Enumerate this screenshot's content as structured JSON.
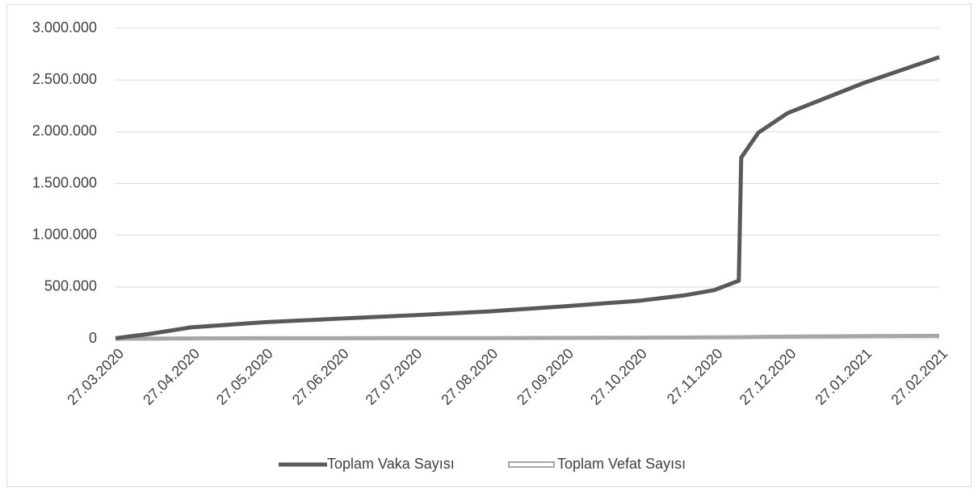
{
  "chart_data": {
    "type": "line",
    "x": [
      "27.03.2020",
      "10.04.2020",
      "27.04.2020",
      "27.05.2020",
      "27.06.2020",
      "27.07.2020",
      "27.08.2020",
      "27.09.2020",
      "27.10.2020",
      "15.11.2020",
      "27.11.2020",
      "07.12.2020",
      "08.12.2020",
      "15.12.2020",
      "27.12.2020",
      "27.01.2021",
      "27.02.2021"
    ],
    "series": [
      {
        "name": "Toplam Vaka Sayısı",
        "color": "#595959",
        "values": [
          5698,
          47029,
          110130,
          159797,
          194511,
          227019,
          263998,
          313811,
          366051,
          420000,
          470000,
          560000,
          1750000,
          1990000,
          2180000,
          2470000,
          2720000
        ]
      },
      {
        "name": "Toplam Vefat Sayısı",
        "color": "#a6a6a6",
        "values": [
          92,
          1006,
          2805,
          4431,
          5046,
          5645,
          6245,
          7970,
          9950,
          11820,
          13014,
          15000,
          15100,
          17000,
          19878,
          25605,
          28138
        ]
      }
    ],
    "xticks": [
      "27.03.2020",
      "27.04.2020",
      "27.05.2020",
      "27.06.2020",
      "27.07.2020",
      "27.08.2020",
      "27.09.2020",
      "27.10.2020",
      "27.11.2020",
      "27.12.2020",
      "27.01.2021",
      "27.02.2021"
    ],
    "ylim": [
      0,
      3000000
    ],
    "yticks": [
      0,
      {
        "value": 500000,
        "label": "500.000"
      },
      {
        "value": 1000000,
        "label": "1.000.000"
      },
      {
        "value": 1500000,
        "label": "1.500.000"
      },
      {
        "value": 2000000,
        "label": "2.000.000"
      },
      {
        "value": 2500000,
        "label": "2.500.000"
      },
      {
        "value": 3000000,
        "label": "3.000.000"
      }
    ],
    "grid": true,
    "legend": "bottom"
  }
}
